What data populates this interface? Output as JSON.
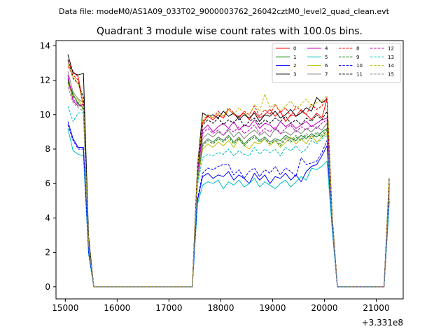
{
  "header": {
    "suptitle": "Data file: modeM0/AS1A09_033T02_9000003762_26042cztM0_level2_quad_clean.evt"
  },
  "chart_data": {
    "type": "line",
    "title": "Quadrant 3 module wise count rates with 100.0s bins.",
    "xlabel": "",
    "ylabel": "",
    "x_offset_label": "+3.331e8",
    "xlim": [
      14820,
      21520
    ],
    "ylim": [
      -0.7,
      14.3
    ],
    "xticks": [
      15000,
      16000,
      17000,
      18000,
      19000,
      20000,
      21000
    ],
    "yticks": [
      0,
      2,
      4,
      6,
      8,
      10,
      12,
      14
    ],
    "grid": false,
    "legend_position": "top-right",
    "x": [
      15050,
      15150,
      15250,
      15350,
      15450,
      15550,
      15650,
      15750,
      15850,
      15950,
      16050,
      16150,
      16250,
      16350,
      16450,
      16550,
      16650,
      16750,
      16850,
      16950,
      17050,
      17150,
      17250,
      17350,
      17450,
      17550,
      17650,
      17750,
      17850,
      17950,
      18050,
      18150,
      18250,
      18350,
      18450,
      18550,
      18650,
      18750,
      18850,
      18950,
      19050,
      19150,
      19250,
      19350,
      19450,
      19550,
      19650,
      19750,
      19850,
      19950,
      20050,
      20150,
      20250,
      20350,
      20450,
      20550,
      20650,
      20750,
      20850,
      20950,
      21050,
      21150,
      21250
    ],
    "series": [
      {
        "name": "0",
        "color": "#ff0000",
        "dash": false,
        "values": [
          13.1,
          12.5,
          12.2,
          10.5,
          2.5,
          0,
          0,
          0,
          0,
          0,
          0,
          0,
          0,
          0,
          0,
          0,
          0,
          0,
          0,
          0,
          0,
          0,
          0,
          0,
          0,
          6.8,
          9.5,
          9.9,
          9.7,
          10.0,
          9.8,
          10.3,
          10.0,
          9.9,
          10.1,
          9.7,
          10.2,
          9.8,
          10.0,
          10.3,
          9.9,
          10.2,
          9.6,
          10.0,
          9.9,
          10.3,
          10.0,
          9.7,
          10.1,
          9.8,
          10.9,
          4.0,
          0,
          0,
          0,
          0,
          0,
          0,
          0,
          0,
          0,
          0,
          6.0
        ]
      },
      {
        "name": "1",
        "color": "#008000",
        "dash": false,
        "values": [
          12.0,
          11.2,
          10.6,
          10.4,
          2.4,
          0,
          0,
          0,
          0,
          0,
          0,
          0,
          0,
          0,
          0,
          0,
          0,
          0,
          0,
          0,
          0,
          0,
          0,
          0,
          0,
          6.2,
          8.3,
          8.6,
          8.4,
          8.7,
          8.5,
          8.8,
          8.4,
          8.7,
          8.3,
          8.6,
          8.8,
          8.5,
          8.7,
          8.4,
          8.6,
          8.5,
          8.8,
          8.6,
          8.5,
          8.8,
          8.6,
          8.9,
          8.7,
          9.0,
          9.2,
          3.8,
          0,
          0,
          0,
          0,
          0,
          0,
          0,
          0,
          0,
          0,
          5.6
        ]
      },
      {
        "name": "2",
        "color": "#0000ff",
        "dash": false,
        "values": [
          9.6,
          8.6,
          8.1,
          8.1,
          2.0,
          0,
          0,
          0,
          0,
          0,
          0,
          0,
          0,
          0,
          0,
          0,
          0,
          0,
          0,
          0,
          0,
          0,
          0,
          0,
          0,
          5.0,
          6.4,
          6.6,
          6.3,
          6.5,
          6.4,
          6.7,
          6.2,
          6.5,
          6.3,
          6.0,
          6.6,
          6.2,
          6.5,
          6.0,
          6.4,
          6.3,
          6.6,
          6.2,
          6.5,
          6.1,
          6.7,
          7.0,
          7.1,
          7.6,
          8.2,
          3.4,
          0,
          0,
          0,
          0,
          0,
          0,
          0,
          0,
          0,
          0,
          5.0
        ]
      },
      {
        "name": "3",
        "color": "#000000",
        "dash": false,
        "values": [
          13.5,
          12.4,
          12.3,
          12.4,
          2.9,
          0,
          0,
          0,
          0,
          0,
          0,
          0,
          0,
          0,
          0,
          0,
          0,
          0,
          0,
          0,
          0,
          0,
          0,
          0,
          0,
          7.0,
          10.1,
          9.9,
          10.0,
          9.8,
          10.2,
          9.9,
          10.1,
          9.7,
          10.0,
          9.8,
          10.1,
          9.6,
          10.0,
          9.9,
          10.2,
          9.8,
          10.0,
          10.3,
          9.9,
          10.1,
          10.4,
          10.2,
          11.0,
          10.7,
          10.9,
          4.1,
          0,
          0,
          0,
          0,
          0,
          0,
          0,
          0,
          0,
          0,
          6.3
        ]
      },
      {
        "name": "4",
        "color": "#bf00bf",
        "dash": false,
        "values": [
          12.3,
          10.8,
          10.5,
          10.6,
          2.5,
          0,
          0,
          0,
          0,
          0,
          0,
          0,
          0,
          0,
          0,
          0,
          0,
          0,
          0,
          0,
          0,
          0,
          0,
          0,
          0,
          6.6,
          9.1,
          9.4,
          9.0,
          9.3,
          9.5,
          9.2,
          9.6,
          9.1,
          9.4,
          9.3,
          9.7,
          9.2,
          9.5,
          9.4,
          9.1,
          9.6,
          9.3,
          9.5,
          9.2,
          9.4,
          9.6,
          9.3,
          9.5,
          9.7,
          9.8,
          3.9,
          0,
          0,
          0,
          0,
          0,
          0,
          0,
          0,
          0,
          0,
          5.8
        ]
      },
      {
        "name": "5",
        "color": "#00bfbf",
        "dash": false,
        "values": [
          9.2,
          7.9,
          7.7,
          7.6,
          1.9,
          0,
          0,
          0,
          0,
          0,
          0,
          0,
          0,
          0,
          0,
          0,
          0,
          0,
          0,
          0,
          0,
          0,
          0,
          0,
          0,
          4.8,
          5.9,
          6.1,
          6.0,
          6.2,
          5.7,
          6.1,
          5.9,
          6.2,
          5.8,
          6.0,
          6.3,
          5.8,
          6.1,
          5.9,
          5.7,
          6.0,
          6.2,
          5.8,
          6.1,
          6.4,
          6.2,
          6.9,
          6.8,
          7.0,
          7.3,
          3.3,
          0,
          0,
          0,
          0,
          0,
          0,
          0,
          0,
          0,
          0,
          4.8
        ]
      },
      {
        "name": "6",
        "color": "#bfbf00",
        "dash": false,
        "values": [
          11.8,
          11.0,
          10.9,
          10.3,
          2.4,
          0,
          0,
          0,
          0,
          0,
          0,
          0,
          0,
          0,
          0,
          0,
          0,
          0,
          0,
          0,
          0,
          0,
          0,
          0,
          0,
          6.1,
          8.0,
          8.3,
          8.1,
          8.4,
          8.2,
          8.5,
          8.1,
          8.6,
          8.2,
          8.0,
          8.4,
          8.3,
          8.6,
          8.2,
          8.5,
          8.1,
          8.4,
          8.7,
          8.3,
          8.6,
          8.3,
          8.8,
          8.4,
          8.7,
          8.9,
          3.7,
          0,
          0,
          0,
          0,
          0,
          0,
          0,
          0,
          0,
          0,
          5.5
        ]
      },
      {
        "name": "7",
        "color": "#808080",
        "dash": false,
        "values": [
          12.5,
          11.3,
          10.9,
          10.7,
          2.5,
          0,
          0,
          0,
          0,
          0,
          0,
          0,
          0,
          0,
          0,
          0,
          0,
          0,
          0,
          0,
          0,
          0,
          0,
          0,
          0,
          6.5,
          8.6,
          8.9,
          8.7,
          9.0,
          8.8,
          9.1,
          8.7,
          9.0,
          8.6,
          8.9,
          9.1,
          8.8,
          9.0,
          8.7,
          9.2,
          8.9,
          9.0,
          8.8,
          9.1,
          8.9,
          9.2,
          9.0,
          9.3,
          9.1,
          9.5,
          3.8,
          0,
          0,
          0,
          0,
          0,
          0,
          0,
          0,
          0,
          0,
          5.7
        ]
      },
      {
        "name": "8",
        "color": "#ff0000",
        "dash": true,
        "values": [
          12.8,
          12.3,
          12.0,
          10.4,
          2.5,
          0,
          0,
          0,
          0,
          0,
          0,
          0,
          0,
          0,
          0,
          0,
          0,
          0,
          0,
          0,
          0,
          0,
          0,
          0,
          0,
          6.9,
          9.6,
          10.0,
          9.8,
          10.2,
          9.9,
          10.4,
          10.1,
          9.8,
          10.2,
          10.0,
          10.5,
          9.9,
          10.3,
          10.0,
          10.6,
          10.1,
          10.4,
          9.9,
          10.5,
          10.2,
          10.0,
          10.6,
          10.3,
          10.5,
          11.0,
          4.0,
          0,
          0,
          0,
          0,
          0,
          0,
          0,
          0,
          0,
          0,
          6.1
        ]
      },
      {
        "name": "9",
        "color": "#008000",
        "dash": true,
        "values": [
          11.9,
          11.1,
          10.7,
          10.3,
          2.4,
          0,
          0,
          0,
          0,
          0,
          0,
          0,
          0,
          0,
          0,
          0,
          0,
          0,
          0,
          0,
          0,
          0,
          0,
          0,
          0,
          6.1,
          8.2,
          8.5,
          8.3,
          8.6,
          8.4,
          8.7,
          8.3,
          8.6,
          8.2,
          8.5,
          8.7,
          8.4,
          8.6,
          8.3,
          8.5,
          8.2,
          8.6,
          8.4,
          8.7,
          8.5,
          8.8,
          8.6,
          8.9,
          8.7,
          9.1,
          3.8,
          0,
          0,
          0,
          0,
          0,
          0,
          0,
          0,
          0,
          0,
          5.5
        ]
      },
      {
        "name": "10",
        "color": "#0000ff",
        "dash": true,
        "values": [
          9.4,
          8.5,
          8.0,
          8.0,
          2.0,
          0,
          0,
          0,
          0,
          0,
          0,
          0,
          0,
          0,
          0,
          0,
          0,
          0,
          0,
          0,
          0,
          0,
          0,
          0,
          0,
          5.1,
          6.6,
          6.9,
          6.8,
          7.0,
          7.1,
          7.1,
          6.5,
          6.8,
          6.3,
          6.7,
          6.9,
          6.4,
          6.8,
          6.6,
          7.0,
          6.5,
          6.9,
          6.7,
          6.4,
          7.5,
          7.1,
          7.2,
          7.3,
          7.8,
          8.5,
          3.5,
          0,
          0,
          0,
          0,
          0,
          0,
          0,
          0,
          0,
          0,
          5.1
        ]
      },
      {
        "name": "11",
        "color": "#000000",
        "dash": true,
        "values": [
          13.2,
          12.1,
          11.8,
          11.0,
          2.7,
          0,
          0,
          0,
          0,
          0,
          0,
          0,
          0,
          0,
          0,
          0,
          0,
          0,
          0,
          0,
          0,
          0,
          0,
          0,
          0,
          6.8,
          9.4,
          9.7,
          9.5,
          9.8,
          9.4,
          9.7,
          9.5,
          9.9,
          9.3,
          9.6,
          9.8,
          9.4,
          9.7,
          9.5,
          9.8,
          9.6,
          9.9,
          9.5,
          9.7,
          9.4,
          9.8,
          9.6,
          10.0,
          9.7,
          10.2,
          4.0,
          0,
          0,
          0,
          0,
          0,
          0,
          0,
          0,
          0,
          0,
          6.0
        ]
      },
      {
        "name": "12",
        "color": "#bf00bf",
        "dash": true,
        "values": [
          12.1,
          10.9,
          10.6,
          10.5,
          2.5,
          0,
          0,
          0,
          0,
          0,
          0,
          0,
          0,
          0,
          0,
          0,
          0,
          0,
          0,
          0,
          0,
          0,
          0,
          0,
          0,
          6.5,
          8.9,
          9.2,
          8.9,
          9.1,
          8.8,
          9.2,
          9.0,
          9.3,
          8.9,
          9.1,
          9.4,
          8.9,
          9.2,
          9.0,
          9.3,
          8.9,
          9.2,
          9.4,
          9.0,
          9.3,
          9.1,
          9.4,
          9.2,
          9.5,
          9.7,
          3.9,
          0,
          0,
          0,
          0,
          0,
          0,
          0,
          0,
          0,
          0,
          5.7
        ]
      },
      {
        "name": "13",
        "color": "#00bfbf",
        "dash": true,
        "values": [
          10.5,
          9.6,
          10.1,
          10.1,
          2.3,
          0,
          0,
          0,
          0,
          0,
          0,
          0,
          0,
          0,
          0,
          0,
          0,
          0,
          0,
          0,
          0,
          0,
          0,
          0,
          0,
          5.9,
          7.5,
          7.7,
          7.6,
          7.8,
          7.7,
          8.0,
          7.6,
          7.9,
          7.7,
          7.6,
          8.1,
          7.7,
          8.0,
          7.8,
          8.0,
          7.6,
          8.1,
          7.9,
          8.2,
          7.8,
          8.0,
          8.5,
          8.3,
          8.6,
          8.8,
          3.6,
          0,
          0,
          0,
          0,
          0,
          0,
          0,
          0,
          0,
          0,
          5.3
        ]
      },
      {
        "name": "14",
        "color": "#bfbf00",
        "dash": true,
        "values": [
          12.9,
          12.2,
          11.8,
          10.6,
          2.6,
          0,
          0,
          0,
          0,
          0,
          0,
          0,
          0,
          0,
          0,
          0,
          0,
          0,
          0,
          0,
          0,
          0,
          0,
          0,
          0,
          6.9,
          9.7,
          10.0,
          9.8,
          10.1,
          9.9,
          10.3,
          10.0,
          10.4,
          10.1,
          9.9,
          10.6,
          10.2,
          11.2,
          10.4,
          10.6,
          10.2,
          10.5,
          10.8,
          10.3,
          10.6,
          10.9,
          10.5,
          10.7,
          10.8,
          11.1,
          4.1,
          0,
          0,
          0,
          0,
          0,
          0,
          0,
          0,
          0,
          0,
          6.2
        ]
      },
      {
        "name": "15",
        "color": "#808080",
        "dash": true,
        "values": [
          11.6,
          10.7,
          10.4,
          10.2,
          2.4,
          0,
          0,
          0,
          0,
          0,
          0,
          0,
          0,
          0,
          0,
          0,
          0,
          0,
          0,
          0,
          0,
          0,
          0,
          0,
          0,
          6.2,
          8.3,
          8.6,
          8.4,
          8.7,
          8.5,
          8.8,
          8.4,
          8.7,
          8.3,
          8.6,
          8.8,
          8.5,
          8.7,
          8.4,
          8.6,
          8.3,
          8.7,
          8.5,
          8.8,
          8.6,
          8.9,
          8.7,
          9.0,
          8.8,
          9.2,
          3.8,
          0,
          0,
          0,
          0,
          0,
          0,
          0,
          0,
          0,
          0,
          5.5
        ]
      }
    ]
  }
}
